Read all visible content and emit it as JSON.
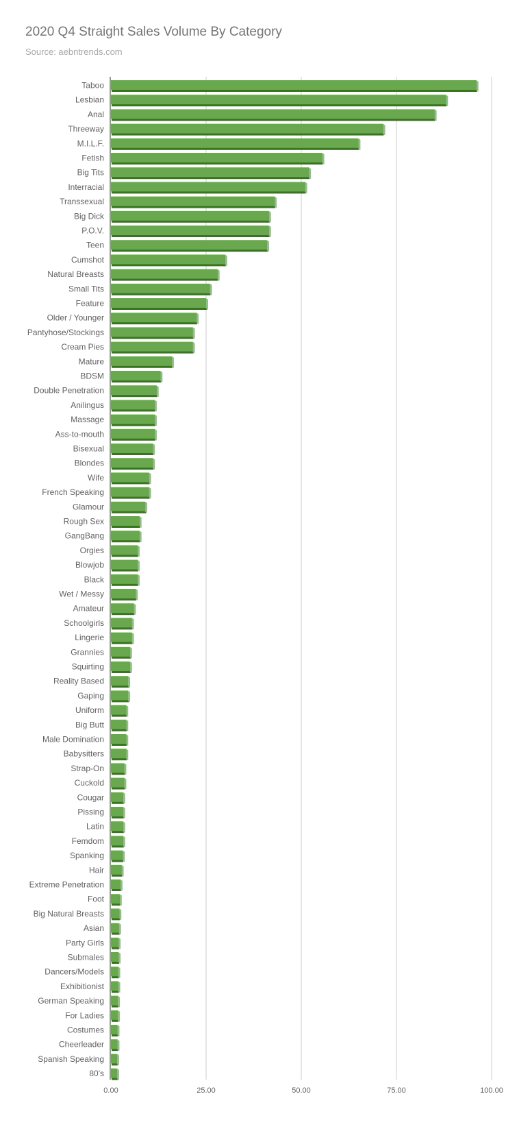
{
  "chart_data": {
    "type": "bar",
    "orientation": "horizontal",
    "title": "2020 Q4 Straight Sales Volume By Category",
    "subtitle": "Source: aebntrends.com",
    "xlabel": "",
    "ylabel": "",
    "xlim": [
      0,
      100
    ],
    "x_ticks": [
      "0.00",
      "25.00",
      "50.00",
      "75.00",
      "100.00"
    ],
    "grid": true,
    "legend": "none",
    "bar_color": "#6aa84f",
    "bar_shadow_color": "#38761d",
    "categories": [
      "Taboo",
      "Lesbian",
      "Anal",
      "Threeway",
      "M.I.L.F.",
      "Fetish",
      "Big Tits",
      "Interracial",
      "Transsexual",
      "Big Dick",
      "P.O.V.",
      "Teen",
      "Cumshot",
      "Natural Breasts",
      "Small Tits",
      "Feature",
      "Older / Younger",
      "Pantyhose/Stockings",
      "Cream Pies",
      "Mature",
      "BDSM",
      "Double Penetration",
      "Anilingus",
      "Massage",
      "Ass-to-mouth",
      "Bisexual",
      "Blondes",
      "Wife",
      "French Speaking",
      "Glamour",
      "Rough Sex",
      "GangBang",
      "Orgies",
      "Blowjob",
      "Black",
      "Wet / Messy",
      "Amateur",
      "Schoolgirls",
      "Lingerie",
      "Grannies",
      "Squirting",
      "Reality Based",
      "Gaping",
      "Uniform",
      "Big Butt",
      "Male Domination",
      "Babysitters",
      "Strap-On",
      "Cuckold",
      "Cougar",
      "Pissing",
      "Latin",
      "Femdom",
      "Spanking",
      "Hair",
      "Extreme Penetration",
      "Foot",
      "Big Natural Breasts",
      "Asian",
      "Party Girls",
      "Submales",
      "Dancers/Models",
      "Exhibitionist",
      "German Speaking",
      "For Ladies",
      "Costumes",
      "Cheerleader",
      "Spanish Speaking",
      "80's"
    ],
    "values": [
      96,
      88,
      85,
      71.5,
      65,
      55.5,
      52,
      51,
      43,
      41.5,
      41.5,
      41,
      30,
      28,
      26,
      25,
      22.5,
      21.5,
      21.5,
      16,
      13,
      12,
      11.5,
      11.5,
      11.5,
      11,
      11,
      10,
      10,
      9,
      7.5,
      7.5,
      7,
      7,
      7,
      6.5,
      6,
      5.5,
      5.5,
      5,
      5,
      4.5,
      4.5,
      4,
      4,
      4,
      4,
      3.5,
      3.5,
      3.2,
      3.2,
      3.2,
      3.2,
      3.1,
      2.8,
      2.5,
      2.3,
      2.2,
      2.1,
      2,
      2,
      1.9,
      1.9,
      1.8,
      1.8,
      1.7,
      1.7,
      1.6,
      1.6
    ]
  }
}
